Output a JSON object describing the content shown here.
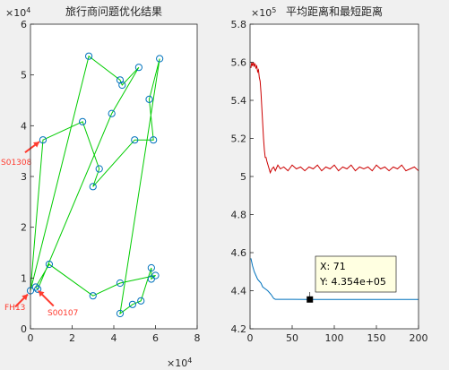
{
  "colors": {
    "figure_bg": "#f0f0f0",
    "axes_bg": "#ffffff",
    "axis": "#262626",
    "route": "#00cc00",
    "city": "#0072bd",
    "avg_line": "#cc0000",
    "min_line": "#0072bd",
    "annotation": "#ff3b2f",
    "datatip_bg": "#ffffe1",
    "datatip_border": "#000000"
  },
  "chart_data": [
    {
      "type": "scatter",
      "title": "旅行商问题优化结果",
      "x_exponent_label": "×10",
      "x_exponent": "4",
      "y_exponent_label": "×10",
      "y_exponent": "4",
      "xlim": [
        0,
        8
      ],
      "ylim": [
        0,
        6
      ],
      "x_ticks": [
        0,
        2,
        4,
        6,
        8
      ],
      "x_tick_labels": [
        "0",
        "2",
        "4",
        "6",
        "8"
      ],
      "y_ticks": [
        0,
        1,
        2,
        3,
        4,
        5,
        6
      ],
      "y_tick_labels": [
        "0",
        "1",
        "2",
        "3",
        "4",
        "5",
        "6"
      ],
      "grid": false,
      "route_closed": true,
      "route": [
        [
          0.35,
          0.78
        ],
        [
          0.25,
          0.82
        ],
        [
          0.9,
          1.27
        ],
        [
          3.0,
          0.65
        ],
        [
          4.3,
          0.9
        ],
        [
          6.0,
          1.05
        ],
        [
          5.8,
          0.98
        ],
        [
          5.8,
          1.2
        ],
        [
          5.3,
          0.55
        ],
        [
          4.9,
          0.48
        ],
        [
          4.3,
          0.3
        ],
        [
          6.2,
          5.32
        ],
        [
          5.7,
          4.52
        ],
        [
          5.9,
          3.72
        ],
        [
          5.0,
          3.72
        ],
        [
          3.0,
          2.8
        ],
        [
          3.3,
          3.15
        ],
        [
          2.5,
          4.08
        ],
        [
          0.6,
          3.72
        ],
        [
          0.0,
          0.75
        ],
        [
          2.8,
          5.37
        ],
        [
          4.3,
          4.9
        ],
        [
          4.4,
          4.8
        ],
        [
          5.2,
          5.15
        ],
        [
          3.9,
          4.24
        ]
      ],
      "annotations": [
        {
          "label": "S01308",
          "x": 0.6,
          "y": 3.72
        },
        {
          "label": "FH13",
          "x": 0.0,
          "y": 0.75
        },
        {
          "label": "S00107",
          "x": 0.25,
          "y": 0.82
        }
      ]
    },
    {
      "type": "line",
      "title": "平均距离和最短距离",
      "y_exponent_label": "×10",
      "y_exponent": "5",
      "xlim": [
        0,
        200
      ],
      "ylim": [
        4.2,
        5.8
      ],
      "x_ticks": [
        0,
        50,
        100,
        150,
        200
      ],
      "x_tick_labels": [
        "0",
        "50",
        "100",
        "150",
        "200"
      ],
      "y_ticks": [
        4.2,
        4.4,
        4.6,
        4.8,
        5.0,
        5.2,
        5.4,
        5.6,
        5.8
      ],
      "y_tick_labels": [
        "4.2",
        "4.4",
        "4.6",
        "4.8",
        "5",
        "5.2",
        "5.4",
        "5.6",
        "5.8"
      ],
      "grid": false,
      "series": [
        {
          "key": "avg",
          "points": [
            [
              1,
              5.57
            ],
            [
              2,
              5.6
            ],
            [
              3,
              5.58
            ],
            [
              4,
              5.6
            ],
            [
              5,
              5.58
            ],
            [
              6,
              5.59
            ],
            [
              7,
              5.57
            ],
            [
              8,
              5.58
            ],
            [
              9,
              5.55
            ],
            [
              10,
              5.56
            ],
            [
              11,
              5.52
            ],
            [
              12,
              5.5
            ],
            [
              13,
              5.44
            ],
            [
              14,
              5.36
            ],
            [
              15,
              5.28
            ],
            [
              16,
              5.2
            ],
            [
              17,
              5.14
            ],
            [
              18,
              5.1
            ],
            [
              19,
              5.1
            ],
            [
              20,
              5.08
            ],
            [
              22,
              5.05
            ],
            [
              24,
              5.02
            ],
            [
              26,
              5.04
            ],
            [
              28,
              5.05
            ],
            [
              30,
              5.03
            ],
            [
              33,
              5.06
            ],
            [
              36,
              5.04
            ],
            [
              40,
              5.05
            ],
            [
              45,
              5.03
            ],
            [
              50,
              5.06
            ],
            [
              55,
              5.04
            ],
            [
              60,
              5.05
            ],
            [
              65,
              5.03
            ],
            [
              70,
              5.05
            ],
            [
              75,
              5.04
            ],
            [
              80,
              5.06
            ],
            [
              85,
              5.03
            ],
            [
              90,
              5.05
            ],
            [
              95,
              5.04
            ],
            [
              100,
              5.06
            ],
            [
              105,
              5.03
            ],
            [
              110,
              5.05
            ],
            [
              115,
              5.04
            ],
            [
              120,
              5.06
            ],
            [
              125,
              5.03
            ],
            [
              130,
              5.05
            ],
            [
              135,
              5.04
            ],
            [
              140,
              5.05
            ],
            [
              145,
              5.03
            ],
            [
              150,
              5.06
            ],
            [
              155,
              5.04
            ],
            [
              160,
              5.05
            ],
            [
              165,
              5.03
            ],
            [
              170,
              5.05
            ],
            [
              175,
              5.04
            ],
            [
              180,
              5.06
            ],
            [
              185,
              5.03
            ],
            [
              190,
              5.04
            ],
            [
              195,
              5.05
            ],
            [
              200,
              5.03
            ]
          ]
        },
        {
          "key": "min",
          "points": [
            [
              1,
              4.57
            ],
            [
              2,
              4.55
            ],
            [
              3,
              4.53
            ],
            [
              5,
              4.5
            ],
            [
              7,
              4.48
            ],
            [
              9,
              4.46
            ],
            [
              11,
              4.45
            ],
            [
              13,
              4.44
            ],
            [
              15,
              4.42
            ],
            [
              18,
              4.41
            ],
            [
              21,
              4.4
            ],
            [
              25,
              4.38
            ],
            [
              28,
              4.36
            ],
            [
              30,
              4.355
            ],
            [
              50,
              4.355
            ],
            [
              71,
              4.354
            ],
            [
              100,
              4.354
            ],
            [
              150,
              4.354
            ],
            [
              200,
              4.354
            ]
          ]
        }
      ],
      "datatip": {
        "x": 71,
        "y": 4.354,
        "x_text": "X: 71",
        "y_text": "Y: 4.354e+05"
      }
    }
  ]
}
